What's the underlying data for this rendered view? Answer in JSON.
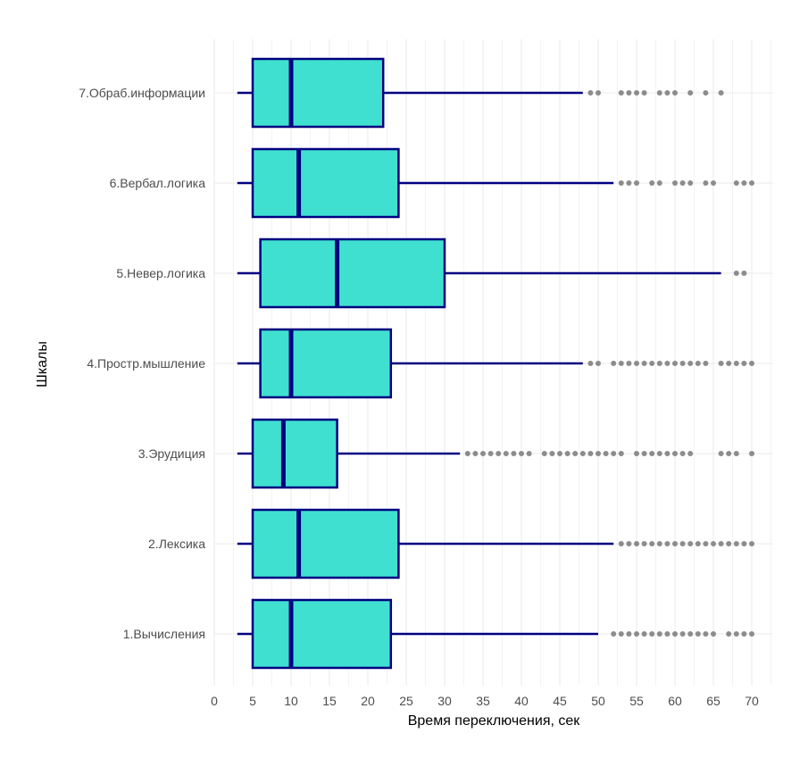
{
  "chart_data": {
    "type": "boxplot",
    "orientation": "horizontal",
    "xlabel": "Время переключения, сек",
    "ylabel": "Шкалы",
    "xlim": [
      0,
      73
    ],
    "x_ticks": [
      0,
      5,
      10,
      15,
      20,
      25,
      30,
      35,
      40,
      45,
      50,
      55,
      60,
      65,
      70
    ],
    "grid": true,
    "colors": {
      "box_fill": "#40e0d0",
      "box_stroke": "#000080",
      "outlier": "#8c8c8c",
      "grid": "#ebebeb"
    },
    "categories": [
      "1.Вычисления",
      "2.Лексика",
      "3.Эрудиция",
      "4.Простр.мышление",
      "5.Невер.логика",
      "6.Вербал.логика",
      "7.Обраб.информации"
    ],
    "boxes": [
      {
        "name": "1.Вычисления",
        "whisker_low": 3,
        "q1": 5,
        "median": 10,
        "q3": 23,
        "whisker_high": 50,
        "outliers": [
          52,
          53,
          54,
          55,
          56,
          57,
          58,
          59,
          60,
          61,
          62,
          63,
          64,
          65,
          67,
          68,
          69,
          70
        ]
      },
      {
        "name": "2.Лексика",
        "whisker_low": 3,
        "q1": 5,
        "median": 11,
        "q3": 24,
        "whisker_high": 52,
        "outliers": [
          53,
          54,
          55,
          56,
          57,
          58,
          59,
          60,
          61,
          62,
          63,
          64,
          65,
          66,
          67,
          68,
          69,
          70
        ]
      },
      {
        "name": "3.Эрудиция",
        "whisker_low": 3,
        "q1": 5,
        "median": 9,
        "q3": 16,
        "whisker_high": 32,
        "outliers": [
          33,
          34,
          35,
          36,
          37,
          38,
          39,
          40,
          41,
          43,
          44,
          45,
          46,
          47,
          48,
          49,
          50,
          51,
          52,
          53,
          55,
          56,
          57,
          58,
          59,
          60,
          61,
          62,
          66,
          67,
          68,
          70
        ]
      },
      {
        "name": "4.Простр.мышление",
        "whisker_low": 3,
        "q1": 6,
        "median": 10,
        "q3": 23,
        "whisker_high": 48,
        "outliers": [
          49,
          50,
          52,
          53,
          54,
          55,
          56,
          57,
          58,
          59,
          60,
          61,
          62,
          63,
          64,
          66,
          67,
          68,
          69,
          70
        ]
      },
      {
        "name": "5.Невер.логика",
        "whisker_low": 3,
        "q1": 6,
        "median": 16,
        "q3": 30,
        "whisker_high": 66,
        "outliers": [
          68,
          69
        ]
      },
      {
        "name": "6.Вербал.логика",
        "whisker_low": 3,
        "q1": 5,
        "median": 11,
        "q3": 24,
        "whisker_high": 52,
        "outliers": [
          53,
          54,
          55,
          57,
          58,
          60,
          61,
          62,
          64,
          65,
          68,
          69,
          70
        ]
      },
      {
        "name": "7.Обраб.информации",
        "whisker_low": 3,
        "q1": 5,
        "median": 10,
        "q3": 22,
        "whisker_high": 48,
        "outliers": [
          49,
          50,
          53,
          54,
          55,
          56,
          58,
          59,
          60,
          62,
          64,
          66
        ]
      }
    ]
  }
}
